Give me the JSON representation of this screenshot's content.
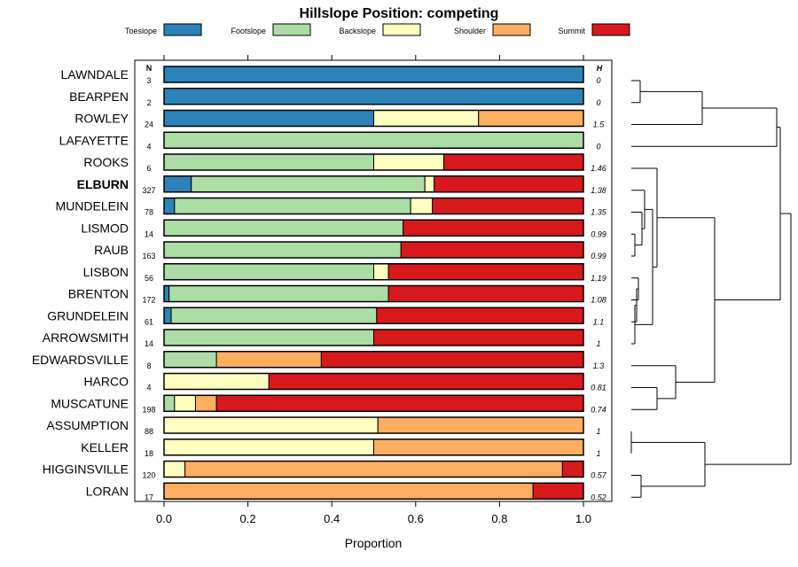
{
  "chart_data": {
    "type": "bar",
    "stacked": true,
    "orientation": "horizontal",
    "title": "Hillslope Position: competing",
    "xlabel": "Proportion",
    "ylabel": "",
    "xlim": [
      0,
      1
    ],
    "x_ticks": [
      "0.0",
      "0.2",
      "0.4",
      "0.6",
      "0.8",
      "1.0"
    ],
    "n_header": "N",
    "h_header": "H",
    "highlight": "ELBURN",
    "legend_position": "top",
    "legend": [
      {
        "name": "Toeslope",
        "color": "#2b83ba"
      },
      {
        "name": "Footslope",
        "color": "#abdda4"
      },
      {
        "name": "Backslope",
        "color": "#ffffbf"
      },
      {
        "name": "Shoulder",
        "color": "#fdae61"
      },
      {
        "name": "Summit",
        "color": "#d7191c"
      }
    ],
    "categories": [
      "LAWNDALE",
      "BEARPEN",
      "ROWLEY",
      "LAFAYETTE",
      "ROOKS",
      "ELBURN",
      "MUNDELEIN",
      "LISMOD",
      "RAUB",
      "LISBON",
      "BRENTON",
      "GRUNDELEIN",
      "ARROWSMITH",
      "EDWARDSVILLE",
      "HARCO",
      "MUSCATUNE",
      "ASSUMPTION",
      "KELLER",
      "HIGGINSVILLE",
      "LORAN"
    ],
    "n": [
      "3",
      "2",
      "24",
      "4",
      "6",
      "327",
      "78",
      "14",
      "163",
      "56",
      "172",
      "61",
      "14",
      "8",
      "4",
      "198",
      "88",
      "18",
      "120",
      "17"
    ],
    "h": [
      "0",
      "0",
      "1.5",
      "0",
      "1.46",
      "1.38",
      "1.35",
      "0.99",
      "0.99",
      "1.19",
      "1.08",
      "1.1",
      "1",
      "1.3",
      "0.81",
      "0.74",
      "1",
      "1",
      "0.57",
      "0.52"
    ],
    "series": [
      {
        "name": "Toeslope",
        "values": [
          1,
          1,
          0.5,
          0,
          0,
          0.065,
          0.025,
          0,
          0,
          0,
          0.012,
          0.017,
          0,
          0,
          0,
          0,
          0,
          0,
          0,
          0
        ]
      },
      {
        "name": "Footslope",
        "values": [
          0,
          0,
          0,
          1,
          0.5,
          0.557,
          0.563,
          0.57,
          0.565,
          0.5,
          0.523,
          0.49,
          0.5,
          0.125,
          0,
          0.025,
          0,
          0,
          0,
          0
        ]
      },
      {
        "name": "Backslope",
        "values": [
          0,
          0,
          0.25,
          0,
          0.167,
          0.022,
          0.052,
          0,
          0,
          0.035,
          0,
          0,
          0,
          0,
          0.25,
          0.05,
          0.51,
          0.5,
          0.05,
          0
        ]
      },
      {
        "name": "Shoulder",
        "values": [
          0,
          0,
          0.25,
          0,
          0,
          0,
          0,
          0,
          0,
          0,
          0,
          0,
          0,
          0.25,
          0,
          0.05,
          0.49,
          0.5,
          0.9,
          0.88
        ]
      },
      {
        "name": "Summit",
        "values": [
          0,
          0,
          0,
          0,
          0.333,
          0.356,
          0.36,
          0.43,
          0.435,
          0.465,
          0.465,
          0.493,
          0.5,
          0.625,
          0.75,
          0.875,
          0,
          0,
          0.05,
          0.12
        ]
      }
    ],
    "dendrogram": {
      "type": "hierarchical-clustering",
      "order": [
        "LAWNDALE",
        "BEARPEN",
        "ROWLEY",
        "LAFAYETTE",
        "ROOKS",
        "ELBURN",
        "MUNDELEIN",
        "LISMOD",
        "RAUB",
        "LISBON",
        "BRENTON",
        "GRUNDELEIN",
        "ARROWSMITH",
        "EDWARDSVILLE",
        "HARCO",
        "MUSCATUNE",
        "ASSUMPTION",
        "KELLER",
        "HIGGINSVILLE",
        "LORAN"
      ]
    }
  }
}
